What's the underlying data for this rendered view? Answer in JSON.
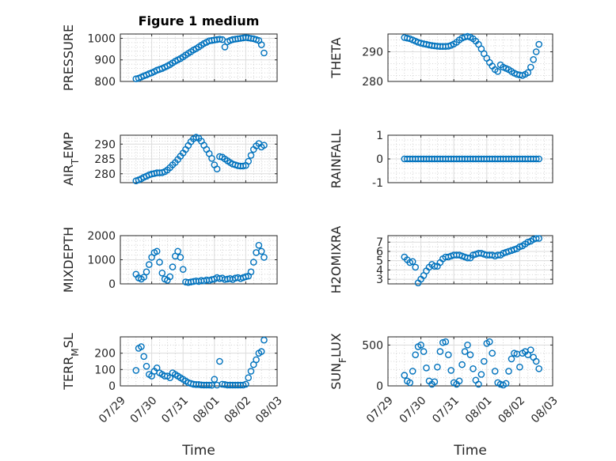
{
  "figure_title": "Figure 1 medium",
  "chart_data": [
    {
      "type": "scatter",
      "id": "pressure",
      "ylabel": "PRESSURE",
      "ylim": [
        800,
        1020
      ],
      "yticks": [
        800,
        900,
        1000
      ],
      "ytick_labels": [
        "800",
        "900",
        "1000"
      ],
      "ytick_minor_step": 20,
      "x": [
        "07/29 12:00",
        "07/29 14:00",
        "07/29 16:00",
        "07/29 18:00",
        "07/29 20:00",
        "07/29 22:00",
        "07/30 00:00",
        "07/30 02:00",
        "07/30 04:00",
        "07/30 06:00",
        "07/30 08:00",
        "07/30 10:00",
        "07/30 12:00",
        "07/30 14:00",
        "07/30 16:00",
        "07/30 18:00",
        "07/30 20:00",
        "07/30 22:00",
        "07/31 00:00",
        "07/31 02:00",
        "07/31 04:00",
        "07/31 06:00",
        "07/31 08:00",
        "07/31 10:00",
        "07/31 12:00",
        "07/31 14:00",
        "07/31 16:00",
        "07/31 18:00",
        "07/31 20:00",
        "07/31 22:00",
        "08/01 00:00",
        "08/01 02:00",
        "08/01 04:00",
        "08/01 06:00",
        "08/01 08:00",
        "08/01 10:00",
        "08/01 12:00",
        "08/01 14:00",
        "08/01 16:00",
        "08/01 18:00",
        "08/01 20:00",
        "08/01 22:00",
        "08/02 00:00",
        "08/02 02:00",
        "08/02 04:00",
        "08/02 06:00",
        "08/02 08:00",
        "08/02 10:00",
        "08/02 12:00",
        "08/02 14:00"
      ],
      "y": [
        812,
        815,
        820,
        826,
        830,
        836,
        840,
        846,
        852,
        856,
        860,
        866,
        872,
        878,
        886,
        894,
        900,
        906,
        914,
        922,
        930,
        938,
        946,
        952,
        960,
        968,
        976,
        982,
        988,
        990,
        992,
        994,
        996,
        994,
        960,
        984,
        990,
        994,
        996,
        998,
        1000,
        1002,
        1004,
        1002,
        1000,
        998,
        994,
        990,
        970,
        932
      ]
    },
    {
      "type": "scatter",
      "id": "theta",
      "ylabel": "THETA",
      "ylim": [
        280,
        296
      ],
      "yticks": [
        280,
        290
      ],
      "ytick_labels": [
        "280",
        "290"
      ],
      "ytick_minor_step": 2,
      "x": [
        "07/29 12:00",
        "07/29 14:00",
        "07/29 16:00",
        "07/29 18:00",
        "07/29 20:00",
        "07/29 22:00",
        "07/30 00:00",
        "07/30 02:00",
        "07/30 04:00",
        "07/30 06:00",
        "07/30 08:00",
        "07/30 10:00",
        "07/30 12:00",
        "07/30 14:00",
        "07/30 16:00",
        "07/30 18:00",
        "07/30 20:00",
        "07/30 22:00",
        "07/31 00:00",
        "07/31 02:00",
        "07/31 04:00",
        "07/31 06:00",
        "07/31 08:00",
        "07/31 10:00",
        "07/31 12:00",
        "07/31 14:00",
        "07/31 16:00",
        "07/31 18:00",
        "07/31 20:00",
        "07/31 22:00",
        "08/01 00:00",
        "08/01 02:00",
        "08/01 04:00",
        "08/01 06:00",
        "08/01 08:00",
        "08/01 10:00",
        "08/01 12:00",
        "08/01 14:00",
        "08/01 16:00",
        "08/01 18:00",
        "08/01 20:00",
        "08/01 22:00",
        "08/02 00:00",
        "08/02 02:00",
        "08/02 04:00",
        "08/02 06:00",
        "08/02 08:00",
        "08/02 10:00",
        "08/02 12:00",
        "08/02 14:00"
      ],
      "y": [
        294.8,
        294.6,
        294.4,
        294.0,
        293.6,
        293.2,
        292.9,
        292.7,
        292.5,
        292.3,
        292.1,
        292.0,
        291.9,
        291.8,
        291.8,
        291.8,
        291.9,
        292.2,
        292.6,
        293.2,
        294.0,
        294.6,
        295.0,
        295.2,
        294.9,
        294.4,
        293.6,
        292.5,
        291.0,
        289.4,
        287.8,
        286.4,
        285.2,
        284.0,
        283.4,
        285.6,
        284.8,
        284.4,
        284.0,
        283.4,
        282.8,
        282.4,
        282.2,
        282.0,
        282.4,
        283.0,
        284.8,
        287.4,
        290.0,
        292.5
      ]
    },
    {
      "type": "scatter",
      "id": "air_temp",
      "ylabel": "AIR_TEMP",
      "ylabel_display": {
        "base": "AIR",
        "sub": "T",
        "rest": "EMP"
      },
      "ylim": [
        277,
        293
      ],
      "yticks": [
        280,
        285,
        290
      ],
      "ytick_labels": [
        "280",
        "285",
        "290"
      ],
      "ytick_minor_step": 1,
      "x": [
        "07/29 12:00",
        "07/29 14:00",
        "07/29 16:00",
        "07/29 18:00",
        "07/29 20:00",
        "07/29 22:00",
        "07/30 00:00",
        "07/30 02:00",
        "07/30 04:00",
        "07/30 06:00",
        "07/30 08:00",
        "07/30 10:00",
        "07/30 12:00",
        "07/30 14:00",
        "07/30 16:00",
        "07/30 18:00",
        "07/30 20:00",
        "07/30 22:00",
        "07/31 00:00",
        "07/31 02:00",
        "07/31 04:00",
        "07/31 06:00",
        "07/31 08:00",
        "07/31 10:00",
        "07/31 12:00",
        "07/31 14:00",
        "07/31 16:00",
        "07/31 18:00",
        "07/31 20:00",
        "07/31 22:00",
        "08/01 00:00",
        "08/01 02:00",
        "08/01 04:00",
        "08/01 06:00",
        "08/01 08:00",
        "08/01 10:00",
        "08/01 12:00",
        "08/01 14:00",
        "08/01 16:00",
        "08/01 18:00",
        "08/01 20:00",
        "08/01 22:00",
        "08/02 00:00",
        "08/02 02:00",
        "08/02 04:00",
        "08/02 06:00",
        "08/02 08:00",
        "08/02 10:00",
        "08/02 12:00",
        "08/02 14:00"
      ],
      "y": [
        277.6,
        277.9,
        278.3,
        278.8,
        279.2,
        279.6,
        279.9,
        280.1,
        280.3,
        280.3,
        280.4,
        280.7,
        281.3,
        282.1,
        283.0,
        283.8,
        284.8,
        285.9,
        287.0,
        288.2,
        289.5,
        290.8,
        291.8,
        292.3,
        292.0,
        291.0,
        289.6,
        288.2,
        286.8,
        285.2,
        283.0,
        281.6,
        285.8,
        285.6,
        285.0,
        284.4,
        283.8,
        283.3,
        283.0,
        282.7,
        282.6,
        282.6,
        282.8,
        284.2,
        286.2,
        288.2,
        289.4,
        290.2,
        289.0,
        289.6
      ]
    },
    {
      "type": "scatter",
      "id": "rainfall",
      "ylabel": "RAINFALL",
      "ylim": [
        -1,
        1
      ],
      "yticks": [
        -1,
        0,
        1
      ],
      "ytick_labels": [
        "-1",
        "0",
        "1"
      ],
      "ytick_minor_step": 0.2,
      "x": [
        "07/29 12:00",
        "07/29 14:00",
        "07/29 16:00",
        "07/29 18:00",
        "07/29 20:00",
        "07/29 22:00",
        "07/30 00:00",
        "07/30 02:00",
        "07/30 04:00",
        "07/30 06:00",
        "07/30 08:00",
        "07/30 10:00",
        "07/30 12:00",
        "07/30 14:00",
        "07/30 16:00",
        "07/30 18:00",
        "07/30 20:00",
        "07/30 22:00",
        "07/31 00:00",
        "07/31 02:00",
        "07/31 04:00",
        "07/31 06:00",
        "07/31 08:00",
        "07/31 10:00",
        "07/31 12:00",
        "07/31 14:00",
        "07/31 16:00",
        "07/31 18:00",
        "07/31 20:00",
        "07/31 22:00",
        "08/01 00:00",
        "08/01 02:00",
        "08/01 04:00",
        "08/01 06:00",
        "08/01 08:00",
        "08/01 10:00",
        "08/01 12:00",
        "08/01 14:00",
        "08/01 16:00",
        "08/01 18:00",
        "08/01 20:00",
        "08/01 22:00",
        "08/02 00:00",
        "08/02 02:00",
        "08/02 04:00",
        "08/02 06:00",
        "08/02 08:00",
        "08/02 10:00",
        "08/02 12:00",
        "08/02 14:00"
      ],
      "y": [
        0,
        0,
        0,
        0,
        0,
        0,
        0,
        0,
        0,
        0,
        0,
        0,
        0,
        0,
        0,
        0,
        0,
        0,
        0,
        0,
        0,
        0,
        0,
        0,
        0,
        0,
        0,
        0,
        0,
        0,
        0,
        0,
        0,
        0,
        0,
        0,
        0,
        0,
        0,
        0,
        0,
        0,
        0,
        0,
        0,
        0,
        0,
        0,
        0,
        0
      ]
    },
    {
      "type": "scatter",
      "id": "mixdepth",
      "ylabel": "MIXDEPTH",
      "ylim": [
        0,
        2000
      ],
      "yticks": [
        0,
        1000,
        2000
      ],
      "ytick_labels": [
        "0",
        "1000",
        "2000"
      ],
      "ytick_minor_step": 200,
      "x": [
        "07/29 12:00",
        "07/29 14:00",
        "07/29 16:00",
        "07/29 18:00",
        "07/29 20:00",
        "07/29 22:00",
        "07/30 00:00",
        "07/30 02:00",
        "07/30 04:00",
        "07/30 06:00",
        "07/30 08:00",
        "07/30 10:00",
        "07/30 12:00",
        "07/30 14:00",
        "07/30 16:00",
        "07/30 18:00",
        "07/30 20:00",
        "07/30 22:00",
        "07/31 00:00",
        "07/31 02:00",
        "07/31 04:00",
        "07/31 06:00",
        "07/31 08:00",
        "07/31 10:00",
        "07/31 12:00",
        "07/31 14:00",
        "07/31 16:00",
        "07/31 18:00",
        "07/31 20:00",
        "07/31 22:00",
        "08/01 00:00",
        "08/01 02:00",
        "08/01 04:00",
        "08/01 06:00",
        "08/01 08:00",
        "08/01 10:00",
        "08/01 12:00",
        "08/01 14:00",
        "08/01 16:00",
        "08/01 18:00",
        "08/01 20:00",
        "08/01 22:00",
        "08/02 00:00",
        "08/02 02:00",
        "08/02 04:00",
        "08/02 06:00",
        "08/02 08:00",
        "08/02 10:00",
        "08/02 12:00",
        "08/02 14:00"
      ],
      "y": [
        400,
        250,
        200,
        280,
        500,
        800,
        1100,
        1300,
        1350,
        900,
        450,
        200,
        150,
        300,
        700,
        1150,
        1350,
        1100,
        600,
        80,
        60,
        80,
        100,
        120,
        100,
        140,
        120,
        160,
        140,
        180,
        200,
        260,
        220,
        240,
        180,
        200,
        220,
        180,
        240,
        260,
        220,
        260,
        300,
        320,
        500,
        900,
        1300,
        1600,
        1350,
        1100
      ]
    },
    {
      "type": "scatter",
      "id": "h2omixra",
      "ylabel": "H2OMIXRA",
      "ylim": [
        2.5,
        7.7
      ],
      "yticks": [
        3,
        4,
        5,
        6,
        7
      ],
      "ytick_labels": [
        "3",
        "4",
        "5",
        "6",
        "7"
      ],
      "ytick_minor_step": 0.5,
      "x": [
        "07/29 12:00",
        "07/29 14:00",
        "07/29 16:00",
        "07/29 18:00",
        "07/29 20:00",
        "07/29 22:00",
        "07/30 00:00",
        "07/30 02:00",
        "07/30 04:00",
        "07/30 06:00",
        "07/30 08:00",
        "07/30 10:00",
        "07/30 12:00",
        "07/30 14:00",
        "07/30 16:00",
        "07/30 18:00",
        "07/30 20:00",
        "07/30 22:00",
        "07/31 00:00",
        "07/31 02:00",
        "07/31 04:00",
        "07/31 06:00",
        "07/31 08:00",
        "07/31 10:00",
        "07/31 12:00",
        "07/31 14:00",
        "07/31 16:00",
        "07/31 18:00",
        "07/31 20:00",
        "07/31 22:00",
        "08/01 00:00",
        "08/01 02:00",
        "08/01 04:00",
        "08/01 06:00",
        "08/01 08:00",
        "08/01 10:00",
        "08/01 12:00",
        "08/01 14:00",
        "08/01 16:00",
        "08/01 18:00",
        "08/01 20:00",
        "08/01 22:00",
        "08/02 00:00",
        "08/02 02:00",
        "08/02 04:00",
        "08/02 06:00",
        "08/02 08:00",
        "08/02 10:00",
        "08/02 12:00",
        "08/02 14:00"
      ],
      "y": [
        5.4,
        5.1,
        4.8,
        4.9,
        4.3,
        2.6,
        3.0,
        3.4,
        3.9,
        4.3,
        4.6,
        4.4,
        4.4,
        4.8,
        5.2,
        5.4,
        5.4,
        5.5,
        5.6,
        5.6,
        5.6,
        5.5,
        5.4,
        5.3,
        5.3,
        5.6,
        5.7,
        5.8,
        5.8,
        5.7,
        5.6,
        5.6,
        5.6,
        5.5,
        5.6,
        5.6,
        5.8,
        5.9,
        6.0,
        6.1,
        6.2,
        6.3,
        6.5,
        6.6,
        6.8,
        7.0,
        7.1,
        7.3,
        7.4,
        7.4
      ]
    },
    {
      "type": "scatter",
      "id": "terr_msl",
      "ylabel": "TERR_MSL",
      "ylabel_display": {
        "base": "TERR",
        "sub": "M",
        "rest": "SL"
      },
      "ylim": [
        0,
        300
      ],
      "yticks": [
        0,
        100,
        200
      ],
      "ytick_labels": [
        "0",
        "100",
        "200"
      ],
      "ytick_minor_step": 50,
      "x": [
        "07/29 12:00",
        "07/29 14:00",
        "07/29 16:00",
        "07/29 18:00",
        "07/29 20:00",
        "07/29 22:00",
        "07/30 00:00",
        "07/30 02:00",
        "07/30 04:00",
        "07/30 06:00",
        "07/30 08:00",
        "07/30 10:00",
        "07/30 12:00",
        "07/30 14:00",
        "07/30 16:00",
        "07/30 18:00",
        "07/30 20:00",
        "07/30 22:00",
        "07/31 00:00",
        "07/31 02:00",
        "07/31 04:00",
        "07/31 06:00",
        "07/31 08:00",
        "07/31 10:00",
        "07/31 12:00",
        "07/31 14:00",
        "07/31 16:00",
        "07/31 18:00",
        "07/31 20:00",
        "07/31 22:00",
        "08/01 00:00",
        "08/01 02:00",
        "08/01 04:00",
        "08/01 06:00",
        "08/01 08:00",
        "08/01 10:00",
        "08/01 12:00",
        "08/01 14:00",
        "08/01 16:00",
        "08/01 18:00",
        "08/01 20:00",
        "08/01 22:00",
        "08/02 00:00",
        "08/02 02:00",
        "08/02 04:00",
        "08/02 06:00",
        "08/02 08:00",
        "08/02 10:00",
        "08/02 12:00",
        "08/02 14:00"
      ],
      "y": [
        95,
        230,
        240,
        180,
        120,
        70,
        60,
        90,
        110,
        80,
        70,
        60,
        60,
        50,
        80,
        70,
        60,
        50,
        40,
        30,
        20,
        15,
        10,
        8,
        8,
        6,
        5,
        5,
        5,
        4,
        40,
        5,
        150,
        10,
        8,
        5,
        5,
        5,
        5,
        5,
        5,
        5,
        10,
        50,
        90,
        130,
        160,
        200,
        210,
        280
      ]
    },
    {
      "type": "scatter",
      "id": "sun_flux",
      "ylabel": "SUN_FLUX",
      "ylabel_display": {
        "base": "SUN",
        "sub": "F",
        "rest": "LUX"
      },
      "ylim": [
        0,
        600
      ],
      "yticks": [
        0,
        500
      ],
      "ytick_labels": [
        "0",
        "500"
      ],
      "ytick_minor_step": 100,
      "x": [
        "07/29 12:00",
        "07/29 14:00",
        "07/29 16:00",
        "07/29 18:00",
        "07/29 20:00",
        "07/29 22:00",
        "07/30 00:00",
        "07/30 02:00",
        "07/30 04:00",
        "07/30 06:00",
        "07/30 08:00",
        "07/30 10:00",
        "07/30 12:00",
        "07/30 14:00",
        "07/30 16:00",
        "07/30 18:00",
        "07/30 20:00",
        "07/30 22:00",
        "07/31 00:00",
        "07/31 02:00",
        "07/31 04:00",
        "07/31 06:00",
        "07/31 08:00",
        "07/31 10:00",
        "07/31 12:00",
        "07/31 14:00",
        "07/31 16:00",
        "07/31 18:00",
        "07/31 20:00",
        "07/31 22:00",
        "08/01 00:00",
        "08/01 02:00",
        "08/01 04:00",
        "08/01 06:00",
        "08/01 08:00",
        "08/01 10:00",
        "08/01 12:00",
        "08/01 14:00",
        "08/01 16:00",
        "08/01 18:00",
        "08/01 20:00",
        "08/01 22:00",
        "08/02 00:00",
        "08/02 02:00",
        "08/02 04:00",
        "08/02 06:00",
        "08/02 08:00",
        "08/02 10:00",
        "08/02 12:00",
        "08/02 14:00"
      ],
      "y": [
        130,
        60,
        40,
        180,
        380,
        480,
        500,
        420,
        220,
        60,
        20,
        50,
        230,
        420,
        530,
        540,
        380,
        190,
        40,
        20,
        60,
        260,
        420,
        500,
        380,
        210,
        70,
        20,
        140,
        300,
        520,
        540,
        400,
        180,
        40,
        20,
        10,
        30,
        180,
        330,
        400,
        390,
        230,
        400,
        420,
        380,
        440,
        350,
        300,
        210
      ]
    }
  ],
  "x_axis": {
    "label": "Time",
    "range": [
      "07/29 00:00",
      "08/03 00:00"
    ],
    "ticks": [
      "07/29",
      "07/30",
      "07/31",
      "08/01",
      "08/02",
      "08/03"
    ]
  },
  "colors": {
    "marker": "#0072bd",
    "axes": "#262626",
    "grid": "#dcdcdc"
  },
  "grid": "on",
  "minor_grid": "on",
  "marker": "circle"
}
